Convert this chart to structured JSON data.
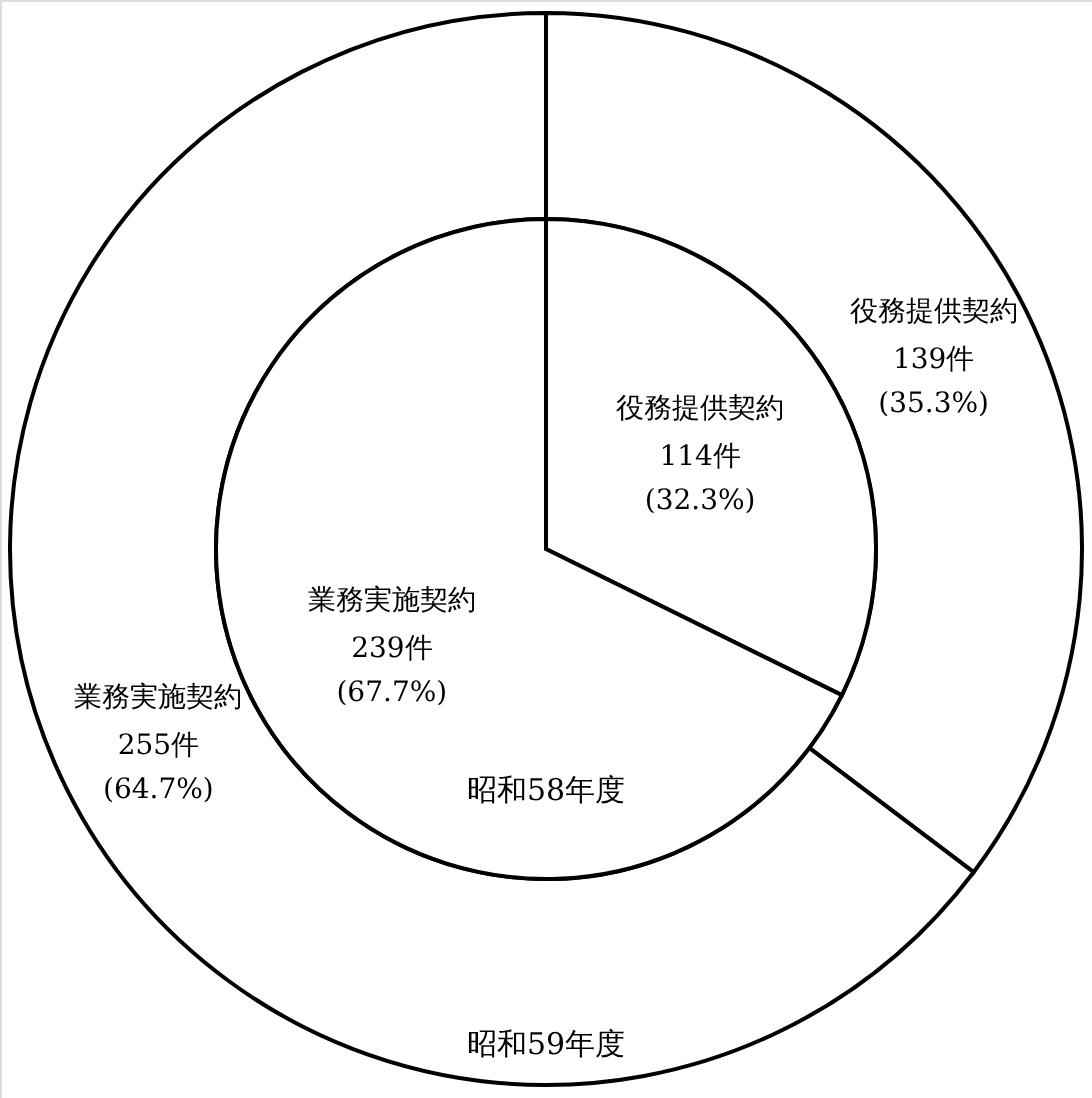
{
  "chart_data": {
    "type": "donut",
    "categories": [
      "役務提供契約",
      "業務実施契約"
    ],
    "colors": [
      "#ffffff",
      "#ffffff"
    ],
    "series": [
      {
        "name": "昭和59年度",
        "values": [
          35.3,
          64.7
        ],
        "value_labels": [
          "139件 (35.3%)",
          "255件 (64.7%)"
        ]
      },
      {
        "name": "昭和58年度",
        "values": [
          32.3,
          67.7
        ],
        "value_labels": [
          "114件 (32.3%)",
          "239件 (67.7%)"
        ]
      }
    ]
  }
}
